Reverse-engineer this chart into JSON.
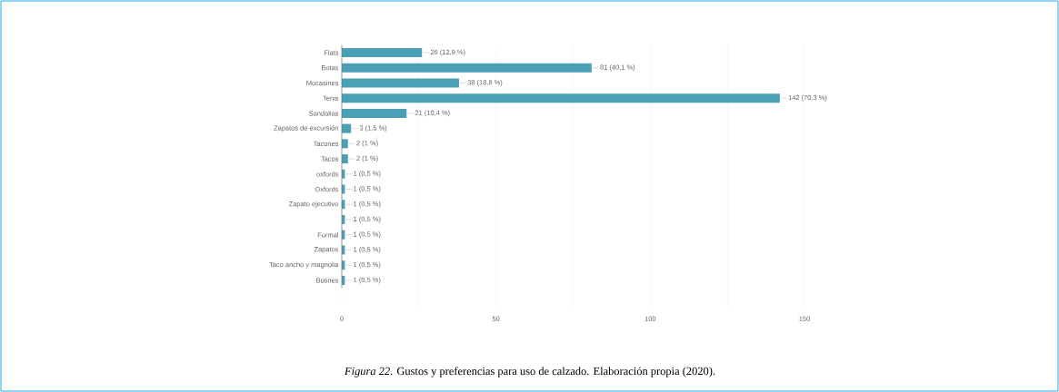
{
  "chart_data": {
    "type": "bar",
    "orientation": "horizontal",
    "categories": [
      "Flats",
      "Botas",
      "Mocasines",
      "Tenis",
      "Sandalias",
      "Zapatos de excursión",
      "Tacones",
      "Tacos",
      "oxfords",
      "Oxfords",
      "Zapato ejecutivo",
      null,
      "Formal",
      "Zapatos",
      "Taco ancho y magnolia",
      "Botines"
    ],
    "values": [
      26,
      81,
      38,
      142,
      21,
      3,
      2,
      2,
      1,
      1,
      1,
      1,
      1,
      1,
      1,
      1
    ],
    "value_labels": [
      "26 (12,9 %)",
      "81 (40,1 %)",
      "38 (18,8 %)",
      "142 (70,3 %)",
      "21 (10,4 %)",
      "3 (1,5 %)",
      "2 (1 %)",
      "2 (1 %)",
      "1 (0,5 %)",
      "1 (0,5 %)",
      "1 (0,5 %)",
      "1 (0,5 %)",
      "1 (0,5 %)",
      "1 (0,5 %)",
      "1 (0,5 %)",
      "1 (0,5 %)"
    ],
    "color": "#4aa1b6",
    "xlim": [
      0,
      150
    ],
    "xticks": [
      0,
      {
        "value": 25,
        "label": null
      },
      50,
      {
        "value": 75,
        "label": null
      },
      100,
      {
        "value": 125,
        "label": null
      },
      150
    ],
    "grid": "x",
    "annotations": [
      "*Figura 22*. Gustos y preferencias para uso de calzado. Elaboración propia (2020)."
    ]
  }
}
